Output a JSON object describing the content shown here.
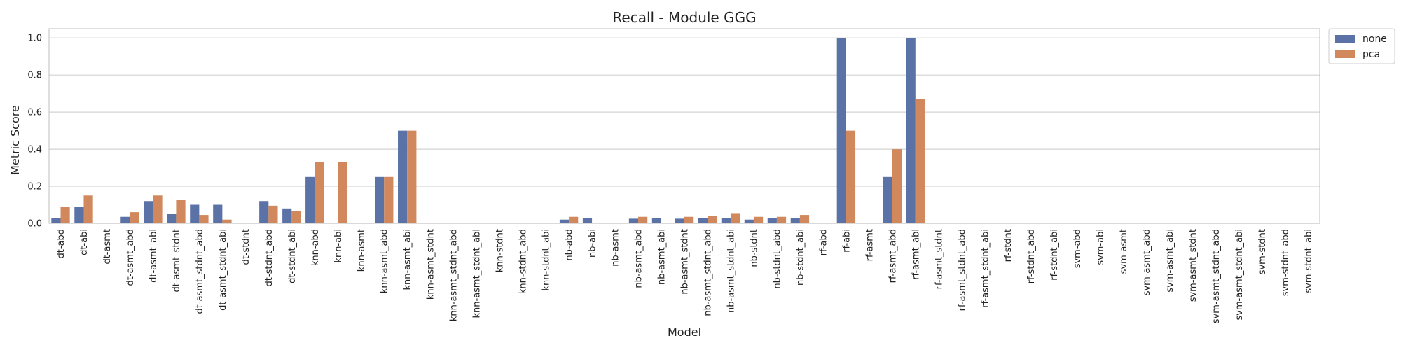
{
  "chart_data": {
    "type": "bar",
    "title": "Recall - Module GGG",
    "xlabel": "Model",
    "ylabel": "Metric Score",
    "ylim": [
      0,
      1.05
    ],
    "yticks": [
      "0.0",
      "0.2",
      "0.4",
      "0.6",
      "0.8",
      "1.0"
    ],
    "grid": true,
    "legend_position": "top-right outside",
    "categories": [
      "dt-abd",
      "dt-abi",
      "dt-asmt",
      "dt-asmt_abd",
      "dt-asmt_abi",
      "dt-asmt_stdnt",
      "dt-asmt_stdnt_abd",
      "dt-asmt_stdnt_abi",
      "dt-stdnt",
      "dt-stdnt_abd",
      "dt-stdnt_abi",
      "knn-abd",
      "knn-abi",
      "knn-asmt",
      "knn-asmt_abd",
      "knn-asmt_abi",
      "knn-asmt_stdnt",
      "knn-asmt_stdnt_abd",
      "knn-asmt_stdnt_abi",
      "knn-stdnt",
      "knn-stdnt_abd",
      "knn-stdnt_abi",
      "nb-abd",
      "nb-abi",
      "nb-asmt",
      "nb-asmt_abd",
      "nb-asmt_abi",
      "nb-asmt_stdnt",
      "nb-asmt_stdnt_abd",
      "nb-asmt_stdnt_abi",
      "nb-stdnt",
      "nb-stdnt_abd",
      "nb-stdnt_abi",
      "rf-abd",
      "rf-abi",
      "rf-asmt",
      "rf-asmt_abd",
      "rf-asmt_abi",
      "rf-asmt_stdnt",
      "rf-asmt_stdnt_abd",
      "rf-asmt_stdnt_abi",
      "rf-stdnt",
      "rf-stdnt_abd",
      "rf-stdnt_abi",
      "svm-abd",
      "svm-abi",
      "svm-asmt",
      "svm-asmt_abd",
      "svm-asmt_abi",
      "svm-asmt_stdnt",
      "svm-asmt_stdnt_abd",
      "svm-asmt_stdnt_abi",
      "svm-stdnt",
      "svm-stdnt_abd",
      "svm-stdnt_abi"
    ],
    "series": [
      {
        "name": "none",
        "color": "#5a72a6",
        "values": [
          0.03,
          0.09,
          0,
          0.035,
          0.12,
          0.05,
          0.1,
          0.1,
          0,
          0.12,
          0.08,
          0.25,
          0,
          0,
          0.25,
          0.5,
          0,
          0,
          0,
          0,
          0,
          0,
          0.02,
          0.03,
          0,
          0.025,
          0.03,
          0.025,
          0.03,
          0.03,
          0.02,
          0.03,
          0.03,
          0,
          1.0,
          0,
          0.25,
          1.0,
          0,
          0,
          0,
          0,
          0,
          0,
          0,
          0,
          0,
          0,
          0,
          0,
          0,
          0,
          0,
          0,
          0
        ]
      },
      {
        "name": "pca",
        "color": "#d1885c",
        "values": [
          0.09,
          0.15,
          0,
          0.06,
          0.15,
          0.125,
          0.045,
          0.02,
          0,
          0.095,
          0.065,
          0.33,
          0.33,
          0,
          0.25,
          0.5,
          0,
          0,
          0,
          0,
          0,
          0,
          0.035,
          0,
          0,
          0.035,
          0,
          0.035,
          0.04,
          0.055,
          0.035,
          0.035,
          0.045,
          0,
          0.5,
          0,
          0.4,
          0.67,
          0,
          0,
          0,
          0,
          0,
          0,
          0,
          0,
          0,
          0,
          0,
          0,
          0,
          0,
          0,
          0,
          0
        ]
      }
    ]
  }
}
